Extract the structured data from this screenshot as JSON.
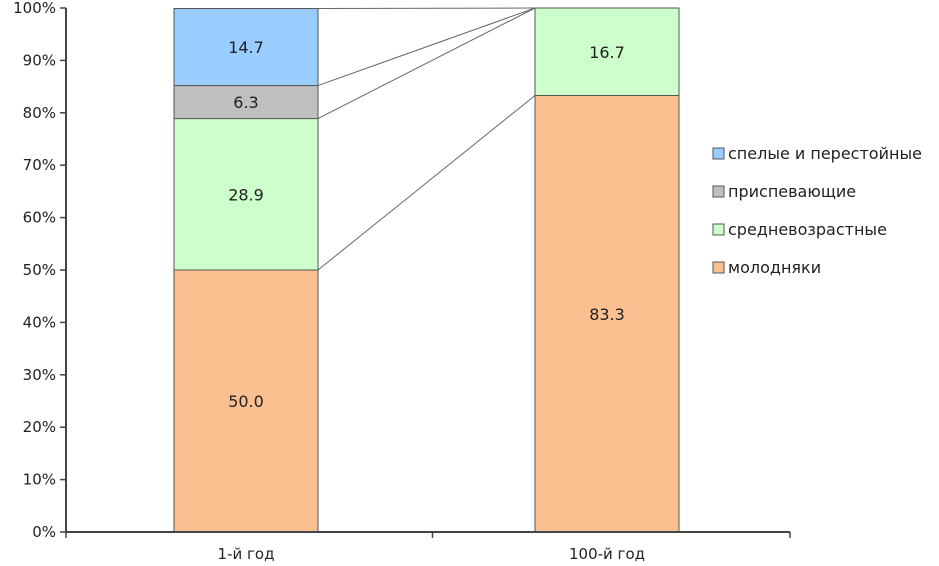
{
  "chart_data": {
    "type": "bar",
    "stacked": true,
    "percent": true,
    "categories": [
      "1-й год",
      "100-й год"
    ],
    "series": [
      {
        "name": "молодняки",
        "values": [
          50.0,
          83.3
        ],
        "color": "#fac090"
      },
      {
        "name": "средневозрастные",
        "values": [
          28.9,
          16.7
        ],
        "color": "#ccffcc"
      },
      {
        "name": "приспевающие",
        "values": [
          6.3,
          0
        ],
        "color": "#bfbfbf"
      },
      {
        "name": "спелые и перестойные",
        "values": [
          14.7,
          0
        ],
        "color": "#99ccff"
      }
    ],
    "data_labels": [
      [
        "50.0",
        "83.3"
      ],
      [
        "28.9",
        "16.7"
      ],
      [
        "6.3",
        ""
      ],
      [
        "14.7",
        ""
      ]
    ],
    "yticks": [
      "0%",
      "10%",
      "20%",
      "30%",
      "40%",
      "50%",
      "60%",
      "70%",
      "80%",
      "90%",
      "100%"
    ],
    "ylim": [
      0,
      100
    ],
    "series_lines": true,
    "legend": {
      "position": "right",
      "order": [
        "спелые и перестойные",
        "приспевающие",
        "средневозрастные",
        "молодняки"
      ]
    },
    "grid": false,
    "title": "",
    "xlabel": "",
    "ylabel": ""
  }
}
